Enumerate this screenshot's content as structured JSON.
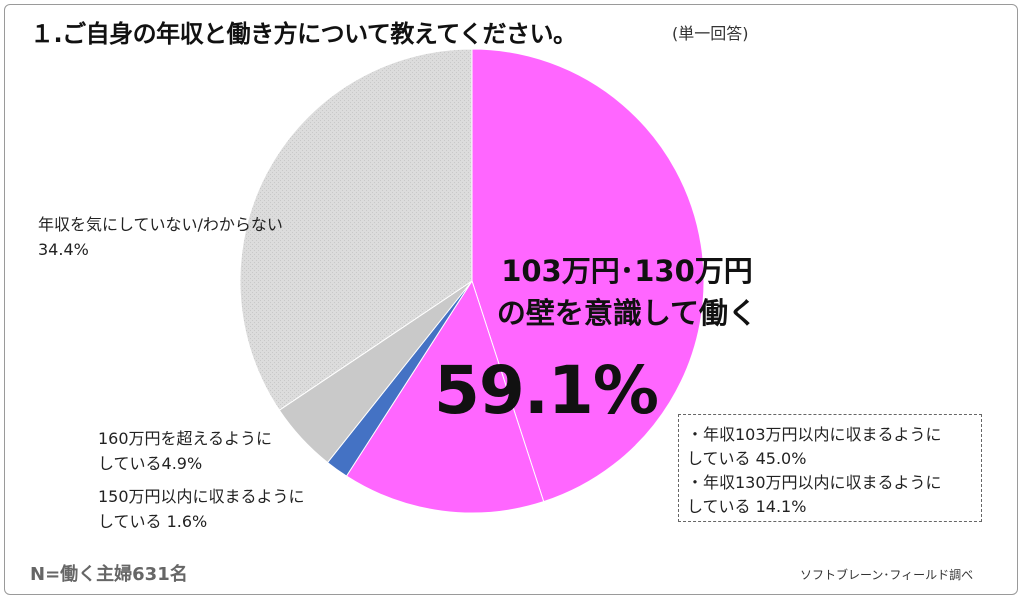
{
  "header": {
    "title": "１.ご自身の年収と働き方について教えてください。",
    "answer_type": "(単一回答)"
  },
  "chart_data": {
    "type": "pie",
    "start": "top",
    "direction": "clockwise",
    "slices": [
      {
        "label_lines": [
          "・年収103万円以内に収まるように",
          "している 45.0%"
        ],
        "value": 45.0,
        "color": "#ff66ff"
      },
      {
        "label_lines": [
          "・年収130万円以内に収まるように",
          "している 14.1%"
        ],
        "value": 14.1,
        "color": "#ff66ff"
      },
      {
        "label_lines": [
          "150万円以内に収まるように",
          "している 1.6%"
        ],
        "value": 1.6,
        "color": "#4472c4"
      },
      {
        "label_lines": [
          "160万円を超えるように",
          "している4.9%"
        ],
        "value": 4.9,
        "color": "#c9c9c9"
      },
      {
        "label_lines": [
          "年収を気にしていない/わからない",
          "34.4%"
        ],
        "value": 34.4,
        "color": "#d9d9d9"
      }
    ],
    "group_label": [
      "103万円･130万円",
      "の壁を意識して働く"
    ],
    "group_value": "59.1%"
  },
  "footer": {
    "sample": "N=働く主婦631名",
    "source": "ソフトブレーン･フィールド調べ"
  }
}
